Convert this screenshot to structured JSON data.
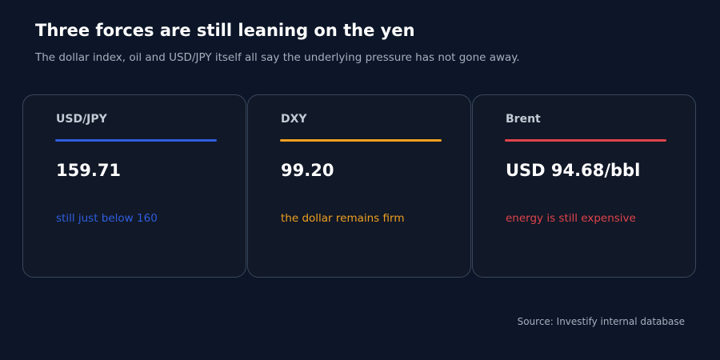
{
  "header": {
    "title": "Three forces are still leaning on the yen",
    "subtitle": "The dollar index, oil and USD/JPY itself all say the underlying pressure has not gone away."
  },
  "cards": [
    {
      "label": "USD/JPY",
      "value": "159.71",
      "note": "still just below 160",
      "accent_color": "#2f5fe0"
    },
    {
      "label": "DXY",
      "value": "99.20",
      "note": "the dollar remains firm",
      "accent_color": "#f0a020"
    },
    {
      "label": "Brent",
      "value": "USD 94.68/bbl",
      "note": "energy is still expensive",
      "accent_color": "#e0444c"
    }
  ],
  "footer": {
    "source": "Source: Investify internal database"
  },
  "colors": {
    "background": "#0c1628",
    "card_background": "#111827",
    "card_border": "#3a475b"
  }
}
